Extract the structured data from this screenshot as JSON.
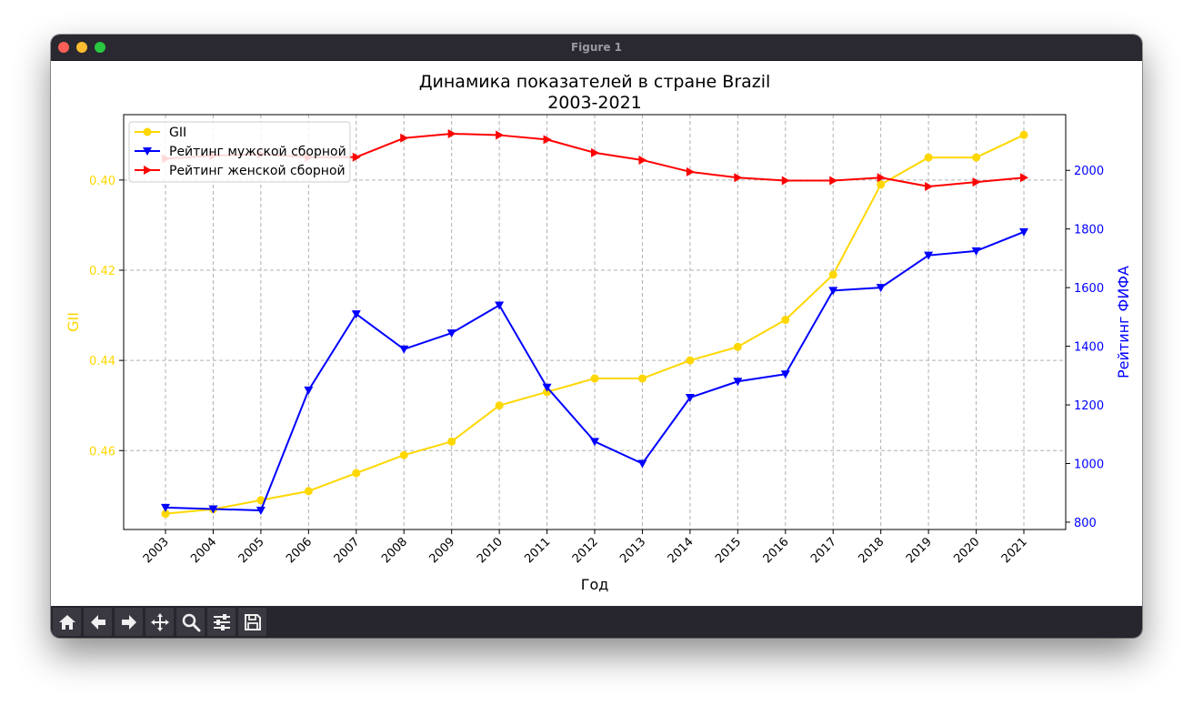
{
  "window": {
    "title": "Figure 1"
  },
  "toolbar": {
    "buttons": [
      {
        "icon": "home-icon"
      },
      {
        "icon": "back-arrow-icon"
      },
      {
        "icon": "forward-arrow-icon"
      },
      {
        "icon": "pan-move-icon"
      },
      {
        "icon": "zoom-magnifier-icon"
      },
      {
        "icon": "configure-subplots-icon"
      },
      {
        "icon": "save-icon"
      }
    ]
  },
  "chart_data": {
    "type": "line",
    "title_line1": "Динамика показателей в стране Brazil",
    "title_line2": "2003-2021",
    "xlabel": "Год",
    "ylabel_left": "GII",
    "ylabel_right": "Рейтинг ФИФА",
    "categories": [
      "2003",
      "2004",
      "2005",
      "2006",
      "2007",
      "2008",
      "2009",
      "2010",
      "2011",
      "2012",
      "2013",
      "2014",
      "2015",
      "2016",
      "2017",
      "2018",
      "2019",
      "2020",
      "2021"
    ],
    "left_axis": {
      "ylim": [
        0.4775,
        0.3855
      ],
      "inverted": true,
      "ticks": [
        "0.40",
        "0.42",
        "0.44",
        "0.46"
      ],
      "tick_values": [
        0.4,
        0.42,
        0.44,
        0.46
      ],
      "color": "#ffd700"
    },
    "right_axis": {
      "ylim": [
        775,
        2190
      ],
      "ticks": [
        "800",
        "1000",
        "1200",
        "1400",
        "1600",
        "1800",
        "2000"
      ],
      "tick_values": [
        800,
        1000,
        1200,
        1400,
        1600,
        1800,
        2000
      ],
      "color": "#0000ff"
    },
    "grid": true,
    "legend_position": "top-left",
    "series": [
      {
        "name": "GII",
        "axis": "left",
        "color": "#ffd700",
        "marker": "circle",
        "values": [
          0.474,
          0.473,
          0.471,
          0.469,
          0.465,
          0.461,
          0.458,
          0.45,
          0.447,
          0.444,
          0.444,
          0.44,
          0.437,
          0.431,
          0.421,
          0.401,
          0.395,
          0.395,
          0.39
        ]
      },
      {
        "name": "Рейтинг мужской сборной",
        "axis": "right",
        "color": "#0000ff",
        "marker": "triangle-down",
        "values": [
          850,
          845,
          840,
          1250,
          1510,
          1390,
          1445,
          1540,
          1260,
          1075,
          1000,
          1225,
          1280,
          1305,
          1590,
          1600,
          1710,
          1725,
          1790
        ]
      },
      {
        "name": "Рейтинг женской сборной",
        "axis": "right",
        "color": "#ff0000",
        "marker": "triangle-right",
        "values": [
          2040,
          2050,
          2055,
          2045,
          2045,
          2110,
          2125,
          2120,
          2105,
          2060,
          2035,
          1995,
          1975,
          1965,
          1965,
          1975,
          1945,
          1960,
          1975
        ]
      }
    ]
  }
}
